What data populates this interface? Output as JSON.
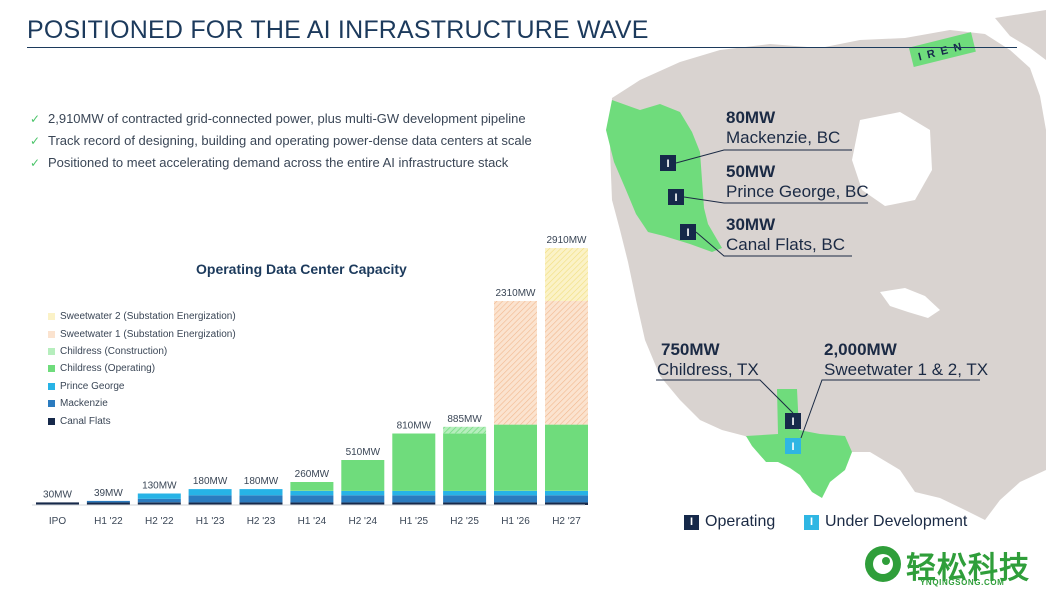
{
  "title": "POSITIONED FOR THE AI INFRASTRUCTURE WAVE",
  "bullets": [
    "2,910MW of contracted grid-connected power, plus multi-GW development pipeline",
    "Track record of designing, building and operating power-dense data centers at scale",
    "Positioned to meet accelerating demand across the entire AI infrastructure stack"
  ],
  "check_glyph": "✓",
  "logo_text": "IREN",
  "chart_data": {
    "type": "bar",
    "stacked": true,
    "title": "Operating Data Center Capacity",
    "categories": [
      "IPO",
      "H1 '22",
      "H2 '22",
      "H1 '23",
      "H2 '23",
      "H1 '24",
      "H2 '24",
      "H1 '25",
      "H2 '25",
      "H1 '26",
      "H2 '27"
    ],
    "total_labels": [
      "30MW",
      "39MW",
      "130MW",
      "180MW",
      "180MW",
      "260MW",
      "510MW",
      "810MW",
      "885MW",
      "2310MW",
      "2910MW"
    ],
    "totals": [
      30,
      39,
      130,
      180,
      180,
      260,
      510,
      810,
      885,
      2310,
      2910
    ],
    "series": [
      {
        "name": "Canal Flats",
        "color": "#16294a",
        "pattern": "solid",
        "values": [
          30,
          30,
          30,
          30,
          30,
          30,
          30,
          30,
          30,
          30,
          30
        ]
      },
      {
        "name": "Mackenzie",
        "color": "#2b7bbf",
        "pattern": "solid",
        "values": [
          0,
          9,
          40,
          80,
          80,
          80,
          80,
          80,
          80,
          80,
          80
        ]
      },
      {
        "name": "Prince George",
        "color": "#27b3e6",
        "pattern": "solid",
        "values": [
          0,
          0,
          60,
          70,
          70,
          50,
          50,
          50,
          50,
          50,
          50
        ]
      },
      {
        "name": "Childress (Operating)",
        "color": "#6fdc7c",
        "pattern": "solid",
        "values": [
          0,
          0,
          0,
          0,
          0,
          100,
          350,
          650,
          650,
          750,
          750
        ]
      },
      {
        "name": "Childress (Construction)",
        "color": "#8fe39a",
        "pattern": "hatch",
        "values": [
          0,
          0,
          0,
          0,
          0,
          0,
          0,
          0,
          75,
          0,
          0
        ]
      },
      {
        "name": "Sweetwater 1 (Substation Energization)",
        "color": "#f5c9a7",
        "pattern": "hatch",
        "values": [
          0,
          0,
          0,
          0,
          0,
          0,
          0,
          0,
          0,
          1400,
          1400
        ]
      },
      {
        "name": "Sweetwater 2 (Substation Energization)",
        "color": "#f7eaa3",
        "pattern": "hatch",
        "values": [
          0,
          0,
          0,
          0,
          0,
          0,
          0,
          0,
          0,
          0,
          600
        ]
      }
    ],
    "legend_position": "left",
    "grid": false
  },
  "sites": [
    {
      "mw": "80MW",
      "name": "Mackenzie, BC",
      "status": "Operating"
    },
    {
      "mw": "50MW",
      "name": "Prince George, BC",
      "status": "Operating"
    },
    {
      "mw": "30MW",
      "name": "Canal Flats, BC",
      "status": "Operating"
    },
    {
      "mw": "750MW",
      "name": "Childress, TX",
      "status": "Operating"
    },
    {
      "mw": "2,000MW",
      "name": "Sweetwater 1 & 2, TX",
      "status": "Under Development"
    }
  ],
  "map_legend": {
    "operating": "Operating",
    "under_development": "Under Development",
    "marker_glyph": "I",
    "operating_color": "#16294a",
    "development_color": "#2fb6e3"
  },
  "colors": {
    "map_land": "#d9d3d0",
    "map_highlight": "#6fdc7c",
    "title": "#1c3a5c"
  },
  "watermark": {
    "text": "轻松科技",
    "sub": "YNQINGSONG.COM"
  }
}
